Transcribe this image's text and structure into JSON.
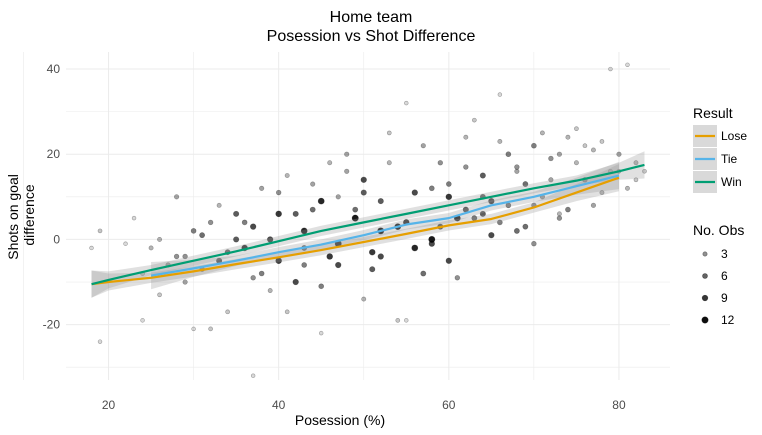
{
  "chart_data": {
    "type": "scatter",
    "title": "Home team",
    "subtitle": "Posession vs Shot Difference",
    "xlabel": "Posession (%)",
    "ylabel_lines": [
      "Shots on goal",
      "difference"
    ],
    "xlim": [
      15,
      86
    ],
    "ylim": [
      -33,
      44
    ],
    "x_ticks": [
      20,
      40,
      60,
      80
    ],
    "y_ticks": [
      -20,
      0,
      20,
      40
    ],
    "grid": true,
    "legend_placement": "right",
    "colors": {
      "Lose": "#E69F00",
      "Tie": "#56B4E9",
      "Win": "#009E73",
      "points": "#000000",
      "ribbon": "#999999",
      "grid": "#ebebeb"
    },
    "series": [
      {
        "name": "Lose",
        "x": [
          18,
          20,
          25,
          30,
          35,
          40,
          45,
          50,
          55,
          60,
          65,
          70,
          75,
          80
        ],
        "values": [
          -10.5,
          -10,
          -9,
          -7.5,
          -5.8,
          -4.2,
          -2.5,
          -0.6,
          1.3,
          3.3,
          4.8,
          7.5,
          11,
          14.5
        ]
      },
      {
        "name": "Tie",
        "x": [
          25,
          30,
          35,
          40,
          45,
          50,
          55,
          60,
          65,
          70,
          75,
          80
        ],
        "values": [
          -8.5,
          -6.8,
          -5,
          -3,
          -1.2,
          1,
          3.5,
          5,
          8,
          10,
          12.5,
          15
        ]
      },
      {
        "name": "Win",
        "x": [
          18,
          20,
          25,
          30,
          35,
          40,
          45,
          50,
          55,
          60,
          65,
          70,
          75,
          80,
          83
        ],
        "values": [
          -10.5,
          -9.5,
          -7.2,
          -5,
          -2.8,
          -0.4,
          2,
          4,
          6,
          8,
          10,
          12,
          13.8,
          16,
          17.5
        ]
      }
    ],
    "points": {
      "x": [
        18,
        19,
        22,
        23,
        24,
        25,
        26,
        27,
        28,
        29,
        30,
        31,
        32,
        33,
        34,
        35,
        36,
        37,
        38,
        39,
        40,
        41,
        42,
        43,
        44,
        45,
        46,
        47,
        48,
        49,
        50,
        51,
        52,
        53,
        54,
        55,
        56,
        57,
        58,
        59,
        60,
        61,
        62,
        63,
        64,
        65,
        66,
        67,
        68,
        69,
        70,
        71,
        72,
        73,
        74,
        75,
        76,
        77,
        78,
        79,
        80,
        81,
        82,
        83,
        19,
        24,
        26,
        30,
        32,
        34,
        37,
        39,
        41,
        43,
        45,
        47,
        50,
        52,
        54,
        55,
        57,
        59,
        61,
        63,
        65,
        67,
        68,
        70,
        71,
        73,
        75,
        77,
        79,
        81,
        82,
        28,
        31,
        33,
        36,
        38,
        40,
        42,
        44,
        46,
        48,
        49,
        51,
        53,
        56,
        58,
        60,
        62,
        64,
        66,
        69,
        72,
        74,
        76,
        78,
        80,
        29,
        35,
        37,
        40,
        43,
        45,
        47,
        50,
        52,
        55,
        58,
        60,
        62,
        64,
        66,
        68,
        70,
        73
      ],
      "y": [
        -2,
        -24,
        -1,
        5,
        -8,
        -2,
        0,
        -6,
        -4,
        -10,
        2,
        -7,
        -21,
        8,
        -3,
        6,
        4,
        -9,
        12,
        0,
        -5,
        15,
        6,
        2,
        13,
        -11,
        18,
        -1,
        20,
        7,
        14,
        -3,
        9,
        25,
        3,
        32,
        11,
        22,
        0,
        18,
        10,
        5,
        24,
        28,
        15,
        9,
        34,
        20,
        17,
        13,
        22,
        25,
        19,
        20,
        24,
        26,
        14,
        21,
        23,
        40,
        20,
        41,
        18,
        16,
        2,
        -19,
        -13,
        -21,
        4,
        -17,
        -32,
        -12,
        -17,
        -6,
        -22,
        10,
        -14,
        -4,
        -19,
        -19,
        -8,
        3,
        -9,
        5,
        1,
        8,
        2,
        -1,
        10,
        5,
        18,
        8,
        16,
        12,
        14,
        10,
        1,
        -5,
        -2,
        -8,
        11,
        -10,
        7,
        -4,
        16,
        5,
        -7,
        18,
        -2,
        12,
        -5,
        17,
        6,
        23,
        3,
        14,
        7,
        22,
        11,
        16,
        -4,
        0,
        3,
        6,
        -2,
        9,
        -6,
        11,
        2,
        4,
        -1,
        13,
        7,
        10,
        4,
        16,
        8,
        6
      ],
      "counts": [
        1,
        1,
        1,
        1,
        2,
        3,
        3,
        4,
        5,
        4,
        6,
        5,
        2,
        3,
        7,
        8,
        6,
        5,
        4,
        9,
        10,
        3,
        8,
        11,
        4,
        6,
        3,
        12,
        4,
        7,
        9,
        10,
        8,
        2,
        11,
        1,
        9,
        4,
        12,
        5,
        10,
        11,
        3,
        2,
        8,
        9,
        1,
        6,
        5,
        7,
        6,
        3,
        5,
        4,
        3,
        2,
        5,
        3,
        2,
        1,
        4,
        1,
        3,
        2,
        2,
        1,
        2,
        1,
        5,
        2,
        1,
        3,
        2,
        6,
        1,
        4,
        3,
        9,
        2,
        1,
        7,
        8,
        5,
        7,
        9,
        6,
        7,
        5,
        4,
        5,
        3,
        4,
        2,
        3,
        2,
        4,
        7,
        8,
        10,
        6,
        5,
        9,
        7,
        10,
        4,
        12,
        8,
        3,
        11,
        6,
        9,
        5,
        8,
        3,
        7,
        4,
        6,
        2,
        3,
        2,
        5,
        8,
        9,
        10,
        7,
        11,
        9,
        8,
        12,
        10,
        9,
        6,
        8,
        7,
        6,
        4,
        5,
        3
      ]
    },
    "legend": {
      "color_title": "Result",
      "color_items": [
        "Lose",
        "Tie",
        "Win"
      ],
      "size_title": "No. Obs",
      "size_items": [
        "3",
        "6",
        "9",
        "12"
      ]
    }
  }
}
